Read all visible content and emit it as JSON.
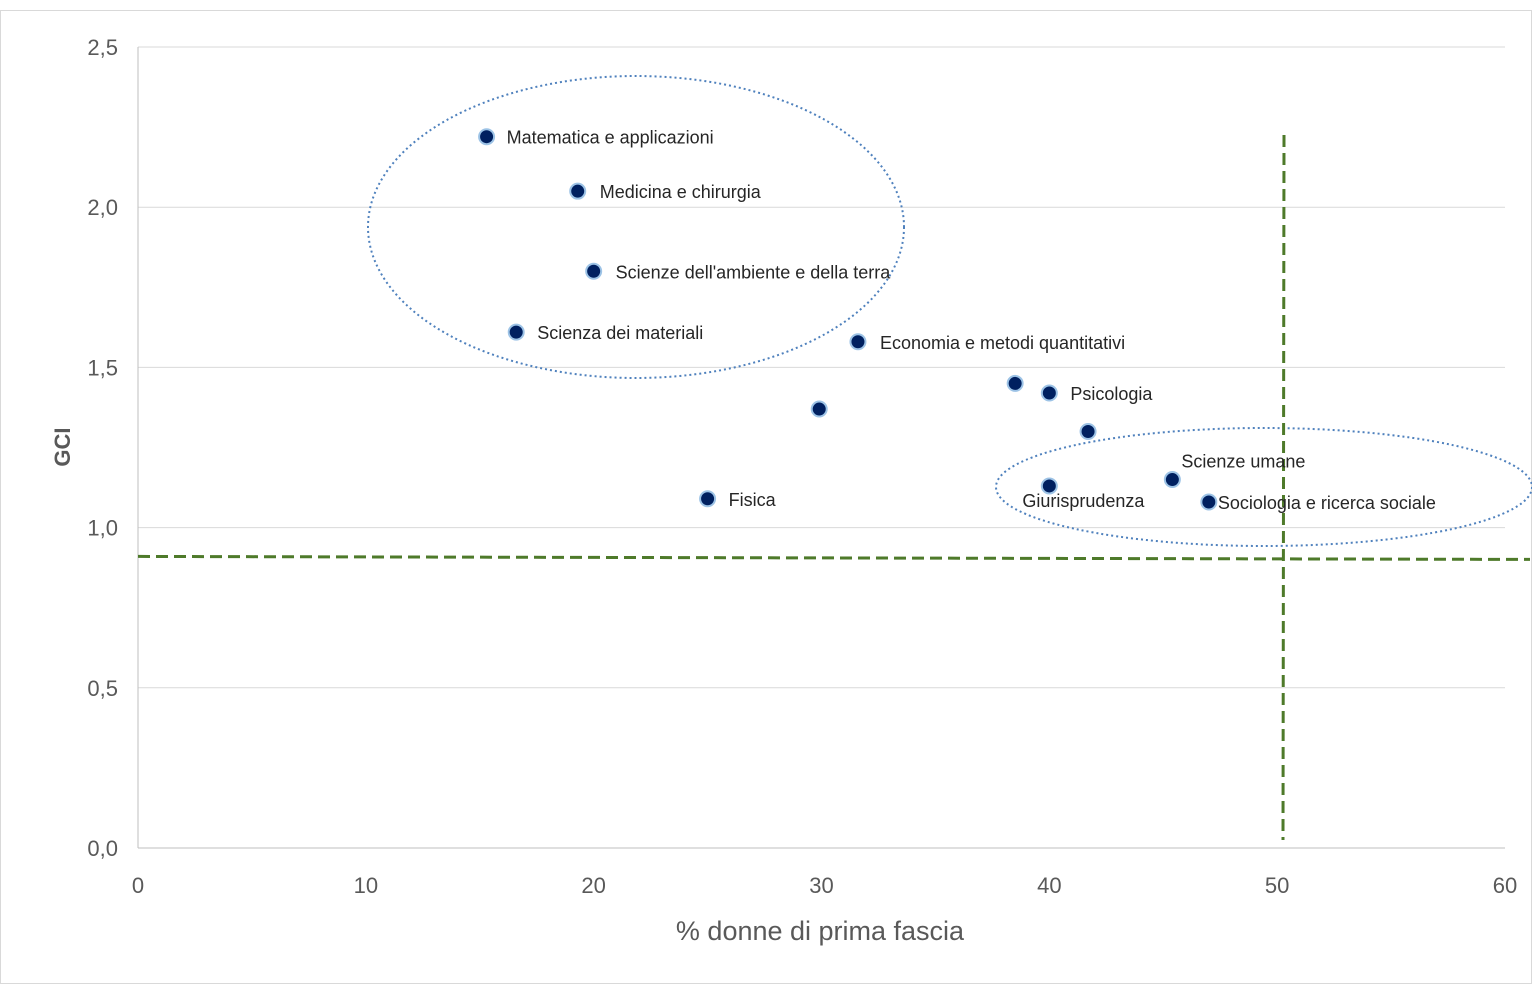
{
  "chart_data": {
    "type": "scatter",
    "title": "",
    "xlabel": "% donne di prima fascia",
    "ylabel": "GCI",
    "xlim": [
      0,
      60
    ],
    "ylim": [
      0,
      2.5
    ],
    "x_ticks": [
      {
        "value": 0,
        "label": "0"
      },
      {
        "value": 10,
        "label": "10"
      },
      {
        "value": 20,
        "label": "20"
      },
      {
        "value": 30,
        "label": "30"
      },
      {
        "value": 40,
        "label": "40"
      },
      {
        "value": 50,
        "label": "50"
      },
      {
        "value": 60,
        "label": "60"
      }
    ],
    "y_ticks": [
      {
        "value": 0,
        "label": "0,0"
      },
      {
        "value": 0.5,
        "label": "0,5"
      },
      {
        "value": 1.0,
        "label": "1,0"
      },
      {
        "value": 1.5,
        "label": "1,5"
      },
      {
        "value": 2.0,
        "label": "2,0"
      },
      {
        "value": 2.5,
        "label": "2,5"
      }
    ],
    "grid": "horizontal",
    "marker_color": "#002060",
    "points": [
      {
        "x": 15.3,
        "y": 2.22,
        "label": "Matematica e applicazioni"
      },
      {
        "x": 19.3,
        "y": 2.05,
        "label": "Medicina e chirurgia"
      },
      {
        "x": 20.0,
        "y": 1.8,
        "label": "Scienze dell'ambiente e della terra"
      },
      {
        "x": 16.6,
        "y": 1.61,
        "label": "Scienza dei materiali"
      },
      {
        "x": 31.6,
        "y": 1.58,
        "label": "Economia e metodi quantitativi"
      },
      {
        "x": 38.5,
        "y": 1.45,
        "label": ""
      },
      {
        "x": 40.0,
        "y": 1.42,
        "label": "Psicologia"
      },
      {
        "x": 29.9,
        "y": 1.37,
        "label": ""
      },
      {
        "x": 41.7,
        "y": 1.3,
        "label": ""
      },
      {
        "x": 45.4,
        "y": 1.15,
        "label": "Scienze umane"
      },
      {
        "x": 40.0,
        "y": 1.13,
        "label": "Giurisprudenza"
      },
      {
        "x": 47.0,
        "y": 1.08,
        "label": "Sociologia e ricerca sociale"
      },
      {
        "x": 25.0,
        "y": 1.09,
        "label": "Fisica"
      }
    ],
    "reference_lines": [
      {
        "orientation": "horizontal",
        "value": 0.91,
        "style": "dashed",
        "color": "#4e7a2a"
      },
      {
        "orientation": "vertical",
        "value": 50.3,
        "style": "dashed",
        "color": "#4e7a2a"
      }
    ],
    "cluster_outline_color": "#4f81bd"
  }
}
